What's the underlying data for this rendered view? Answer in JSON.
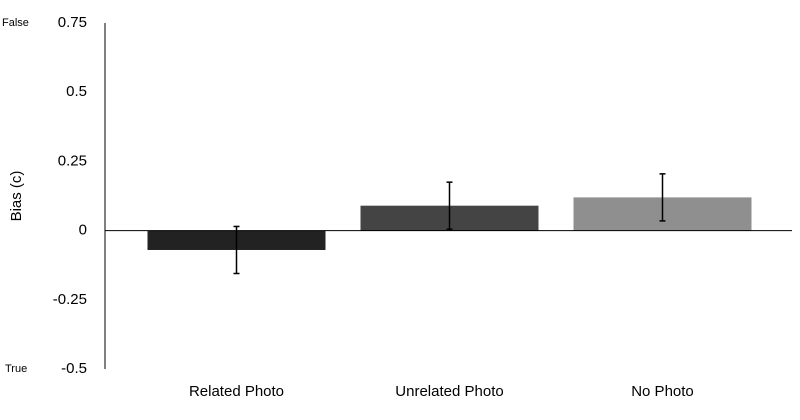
{
  "chart_data": {
    "type": "bar",
    "ylabel": "Bias (c)",
    "annotations": [
      "False",
      "True"
    ],
    "categories": [
      "Related Photo",
      "Unrelated Photo",
      "No Photo"
    ],
    "values": [
      -0.07,
      0.09,
      0.12
    ],
    "errors": [
      0.085,
      0.085,
      0.085
    ],
    "colors": [
      "#222222",
      "#444444",
      "#8f8f8f"
    ],
    "ylim": [
      -0.5,
      0.75
    ],
    "yticks": [
      -0.5,
      -0.25,
      0,
      0.25,
      0.5,
      0.75
    ],
    "grid": false
  }
}
